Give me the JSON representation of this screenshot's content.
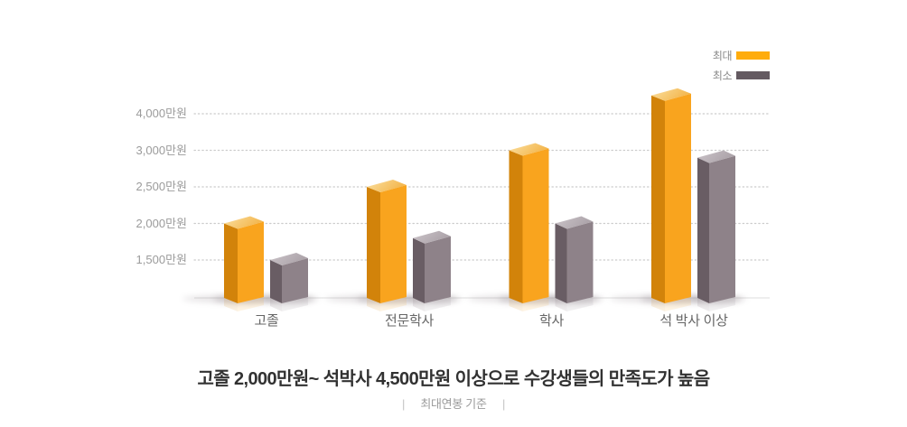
{
  "title": "고졸 2,000만원~ 석박사 4,500만원 이상으로 수강생들의 만족도가 높음",
  "subtitle": {
    "text": "최대연봉 기준",
    "separator": "|"
  },
  "legend": {
    "items": [
      {
        "label": "최대",
        "color": "#FFAC0C"
      },
      {
        "label": "최소",
        "color": "#645A61"
      }
    ]
  },
  "chart_data": {
    "type": "bar",
    "style": "3d-column",
    "categories": [
      "고졸",
      "전문학사",
      "학사",
      "석 박사 이상"
    ],
    "series": [
      {
        "name": "최대",
        "values": [
          2000,
          2500,
          3000,
          4500
        ],
        "color": "#F9A41E"
      },
      {
        "name": "최소",
        "values": [
          1500,
          1800,
          2000,
          2900
        ],
        "color": "#8E8289"
      }
    ],
    "y_ticks": [
      {
        "label": "4,000만원",
        "value": 4000
      },
      {
        "label": "3,000만원",
        "value": 3000
      },
      {
        "label": "2,500만원",
        "value": 2500
      },
      {
        "label": "2,000만원",
        "value": 2000
      },
      {
        "label": "1,500만원",
        "value": 1500
      }
    ],
    "unit": "만원",
    "grid": "horizontal-dotted",
    "legend_position": "top-right",
    "axis_note": "ticks evenly spaced (non-linear value scale)"
  },
  "colors": {
    "max_front": "#F9A41E",
    "max_side": "#D2830A",
    "max_top_light": "#FBE0A2",
    "max_top_dark": "#F3B54B",
    "min_front": "#8E8289",
    "min_side": "#695D64",
    "min_top_light": "#CBC4C9",
    "min_top_dark": "#ABA2A8",
    "gridline": "#cccccc",
    "baseline": "#dedede",
    "shadow": "#8a7f86"
  }
}
